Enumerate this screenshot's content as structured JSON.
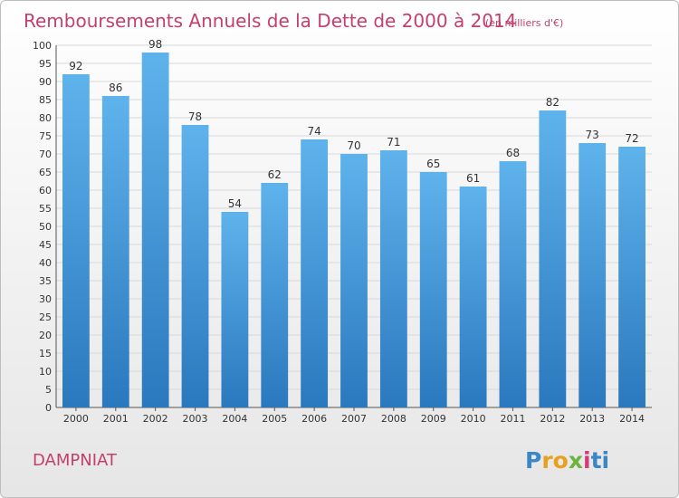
{
  "colors": {
    "title": "#c33f6e",
    "bar_top": "#5fb3ec",
    "bar_bottom": "#2a78be",
    "grid": "#d8d8d8",
    "logo": [
      "#3a87c8",
      "#e8a020",
      "#e8a020",
      "#6cb33f",
      "#d43b7a",
      "#3a87c8"
    ]
  },
  "chart_data": {
    "type": "bar",
    "title": "Remboursements Annuels de la Dette de 2000 à 2014",
    "subtitle": "(en milliers d'€)",
    "categories": [
      "2000",
      "2001",
      "2002",
      "2003",
      "2004",
      "2005",
      "2006",
      "2007",
      "2008",
      "2009",
      "2010",
      "2011",
      "2012",
      "2013",
      "2014"
    ],
    "values": [
      92,
      86,
      98,
      78,
      54,
      62,
      74,
      70,
      71,
      65,
      61,
      68,
      82,
      73,
      72
    ],
    "ylim": [
      0,
      100
    ],
    "ytick_step": 5,
    "grid": true,
    "xlabel": "",
    "ylabel": ""
  },
  "footer": {
    "city": "DAMPNIAT",
    "logo_letters": [
      "P",
      "r",
      "o",
      "x",
      "i",
      "t",
      "i"
    ]
  }
}
